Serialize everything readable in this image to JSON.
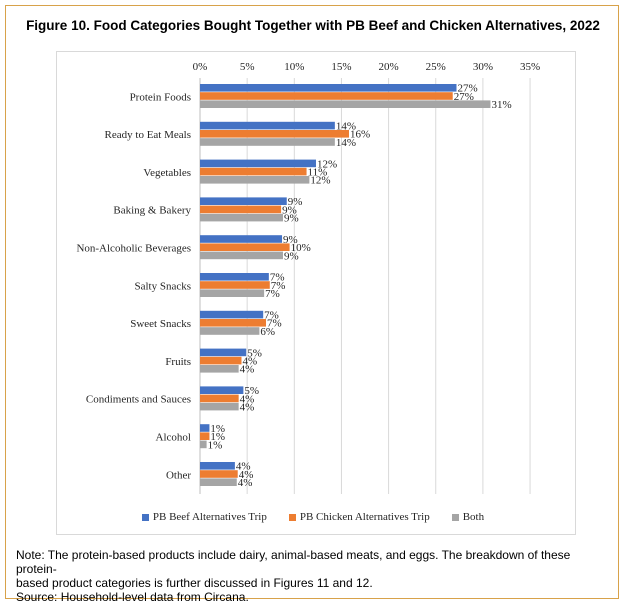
{
  "figure": {
    "title": "Figure 10. Food Categories Bought Together with PB Beef and Chicken Alternatives, 2022",
    "note_line1": "Note: The protein-based products include dairy, animal-based meats, and eggs. The breakdown of these protein-",
    "note_line2": "based product categories is further discussed in Figures 11 and 12.",
    "source": "Source: Household-level data from Circana."
  },
  "chart_data": {
    "type": "bar",
    "orientation": "horizontal",
    "title": "Figure 10. Food Categories Bought Together with PB Beef and Chicken Alternatives, 2022",
    "xlabel": "",
    "ylabel": "",
    "xlim": [
      0,
      35
    ],
    "x_ticks": [
      "0%",
      "5%",
      "10%",
      "15%",
      "20%",
      "25%",
      "30%",
      "35%"
    ],
    "grid": true,
    "legend_position": "bottom",
    "categories": [
      "Protein Foods",
      "Ready to Eat Meals",
      "Vegetables",
      "Baking & Bakery",
      "Non-Alcoholic Beverages",
      "Salty Snacks",
      "Sweet Snacks",
      "Fruits",
      "Condiments and Sauces",
      "Alcohol",
      "Other"
    ],
    "series": [
      {
        "name": "PB Beef Alternatives Trip",
        "color": "#4472c4",
        "values": [
          27.2,
          14.3,
          12.3,
          9.2,
          8.7,
          7.3,
          6.7,
          4.9,
          4.6,
          1.0,
          3.7
        ],
        "labels": [
          "27%",
          "14%",
          "12%",
          "9%",
          "9%",
          "7%",
          "7%",
          "5%",
          "5%",
          "1%",
          "4%"
        ]
      },
      {
        "name": "PB Chicken Alternatives Trip",
        "color": "#ed7d31",
        "values": [
          26.8,
          15.8,
          11.3,
          8.6,
          9.5,
          7.4,
          7.0,
          4.4,
          4.1,
          1.0,
          4.0
        ],
        "labels": [
          "27%",
          "16%",
          "11%",
          "9%",
          "10%",
          "7%",
          "7%",
          "4%",
          "4%",
          "1%",
          "4%"
        ]
      },
      {
        "name": "Both",
        "color": "#a5a5a5",
        "values": [
          30.8,
          14.3,
          11.6,
          8.8,
          8.8,
          6.8,
          6.3,
          4.1,
          4.1,
          0.7,
          3.9
        ],
        "labels": [
          "31%",
          "14%",
          "12%",
          "9%",
          "9%",
          "7%",
          "6%",
          "4%",
          "4%",
          "1%",
          "4%"
        ]
      }
    ]
  }
}
